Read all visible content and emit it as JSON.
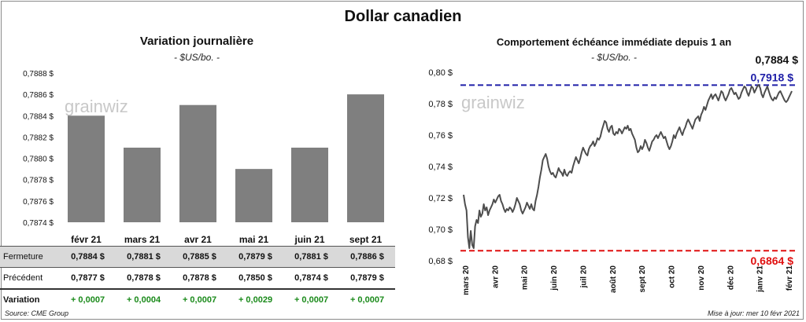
{
  "title": "Dollar canadien",
  "left_panel": {
    "title": "Variation  journalière",
    "subtitle": "- $US/bo. -"
  },
  "right_panel": {
    "title": "Comportement échéance immédiate depuis 1 an",
    "subtitle": "- $US/bo. -"
  },
  "watermark": "grainwiz",
  "table": {
    "rows": [
      {
        "label": "Fermeture",
        "values": [
          "0,7884  $",
          "0,7881  $",
          "0,7885  $",
          "0,7879  $",
          "0,7881  $",
          "0,7886  $"
        ]
      },
      {
        "label": "Précédent",
        "values": [
          "0,7877  $",
          "0,7878  $",
          "0,7878  $",
          "0,7850  $",
          "0,7874  $",
          "0,7879  $"
        ]
      },
      {
        "label": "Variation",
        "values": [
          "+ 0,0007",
          "+ 0,0004",
          "+ 0,0007",
          "+ 0,0029",
          "+ 0,0007",
          "+ 0,0007"
        ]
      }
    ]
  },
  "footer": {
    "source": "Source: CME Group",
    "updated": "Mise à jour: mer 10 févr 2021"
  },
  "colors": {
    "bar": "#7f7f7f",
    "line": "#4d4d4d",
    "high_line": "#1f1fa8",
    "low_line": "#e01010",
    "variation_text": "#1a8a1a"
  },
  "chart_data": [
    {
      "type": "bar",
      "categories": [
        "févr 21",
        "mars 21",
        "avr 21",
        "mai 21",
        "juin 21",
        "sept 21"
      ],
      "values": [
        0.7884,
        0.7881,
        0.7885,
        0.7879,
        0.7881,
        0.7886
      ],
      "ylim": [
        0.7874,
        0.7888
      ],
      "yticks": [
        "0,7874 $",
        "0,7876 $",
        "0,7878 $",
        "0,7880 $",
        "0,7882 $",
        "0,7884 $",
        "0,7886 $",
        "0,7888 $"
      ],
      "grid": false
    },
    {
      "type": "line",
      "x_labels": [
        "mars 20",
        "avr 20",
        "mai 20",
        "juin 20",
        "juil 20",
        "août 20",
        "sept 20",
        "oct 20",
        "nov 20",
        "déc 20",
        "janv 21",
        "févr 21"
      ],
      "ylim": [
        0.68,
        0.8
      ],
      "yticks": [
        "0,68 $",
        "0,70 $",
        "0,72 $",
        "0,74 $",
        "0,76 $",
        "0,78 $",
        "0,80 $"
      ],
      "last_value_label": "0,7884 $",
      "high": {
        "value": 0.7918,
        "label": "0,7918 $"
      },
      "low": {
        "value": 0.6864,
        "label": "0,6864 $"
      },
      "series": [
        {
          "values": [
            0.722,
            0.716,
            0.712,
            0.695,
            0.688,
            0.699,
            0.69,
            0.688,
            0.702,
            0.706,
            0.704,
            0.712,
            0.708,
            0.71,
            0.716,
            0.712,
            0.714,
            0.709,
            0.712,
            0.714,
            0.716,
            0.719,
            0.717,
            0.719,
            0.721,
            0.722,
            0.718,
            0.716,
            0.713,
            0.711,
            0.713,
            0.712,
            0.714,
            0.713,
            0.711,
            0.713,
            0.716,
            0.72,
            0.718,
            0.716,
            0.712,
            0.71,
            0.712,
            0.714,
            0.717,
            0.715,
            0.713,
            0.716,
            0.713,
            0.712,
            0.718,
            0.722,
            0.727,
            0.733,
            0.738,
            0.744,
            0.746,
            0.748,
            0.745,
            0.74,
            0.737,
            0.735,
            0.736,
            0.734,
            0.733,
            0.736,
            0.739,
            0.737,
            0.736,
            0.734,
            0.738,
            0.735,
            0.734,
            0.736,
            0.737,
            0.736,
            0.74,
            0.743,
            0.746,
            0.744,
            0.742,
            0.745,
            0.749,
            0.752,
            0.75,
            0.748,
            0.747,
            0.751,
            0.753,
            0.754,
            0.756,
            0.753,
            0.755,
            0.758,
            0.757,
            0.759,
            0.763,
            0.766,
            0.769,
            0.768,
            0.764,
            0.762,
            0.765,
            0.766,
            0.761,
            0.76,
            0.762,
            0.761,
            0.764,
            0.763,
            0.761,
            0.763,
            0.765,
            0.764,
            0.766,
            0.763,
            0.764,
            0.761,
            0.759,
            0.757,
            0.752,
            0.749,
            0.75,
            0.753,
            0.751,
            0.753,
            0.757,
            0.755,
            0.752,
            0.75,
            0.753,
            0.756,
            0.757,
            0.759,
            0.76,
            0.758,
            0.76,
            0.762,
            0.76,
            0.758,
            0.759,
            0.756,
            0.753,
            0.751,
            0.753,
            0.756,
            0.76,
            0.758,
            0.761,
            0.763,
            0.765,
            0.762,
            0.76,
            0.763,
            0.765,
            0.768,
            0.77,
            0.768,
            0.766,
            0.764,
            0.767,
            0.77,
            0.771,
            0.772,
            0.769,
            0.773,
            0.775,
            0.778,
            0.776,
            0.779,
            0.782,
            0.784,
            0.786,
            0.783,
            0.785,
            0.786,
            0.784,
            0.782,
            0.785,
            0.788,
            0.787,
            0.784,
            0.782,
            0.784,
            0.786,
            0.789,
            0.79,
            0.788,
            0.786,
            0.787,
            0.785,
            0.783,
            0.784,
            0.787,
            0.789,
            0.791,
            0.79,
            0.787,
            0.785,
            0.788,
            0.791,
            0.79,
            0.787,
            0.789,
            0.791,
            0.792,
            0.79,
            0.786,
            0.784,
            0.787,
            0.789,
            0.791,
            0.788,
            0.785,
            0.783,
            0.782,
            0.784,
            0.783,
            0.785,
            0.787,
            0.788,
            0.786,
            0.784,
            0.782,
            0.781,
            0.782,
            0.784,
            0.786,
            0.788
          ]
        }
      ]
    }
  ]
}
